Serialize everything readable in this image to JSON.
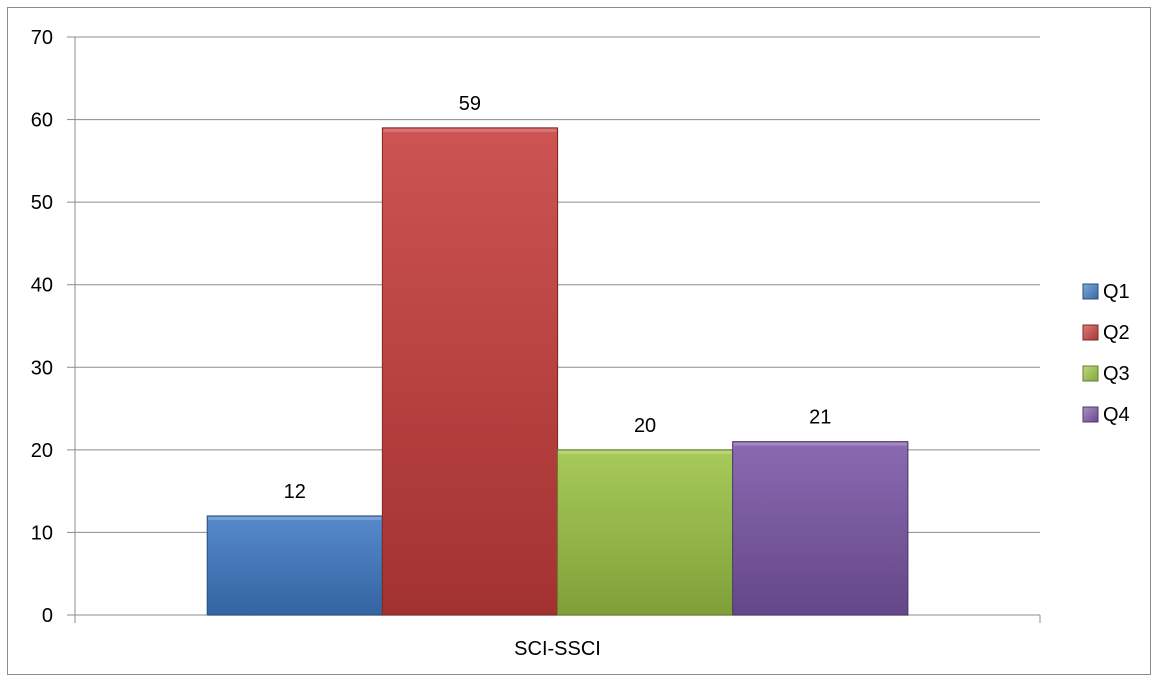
{
  "chart_data": {
    "type": "bar",
    "categories": [
      "SCI-SSCI"
    ],
    "series": [
      {
        "name": "Q1",
        "values": [
          12
        ],
        "color": "#3f7ac4"
      },
      {
        "name": "Q2",
        "values": [
          59
        ],
        "color": "#c63d3a"
      },
      {
        "name": "Q3",
        "values": [
          20
        ],
        "color": "#9bc344"
      },
      {
        "name": "Q4",
        "values": [
          21
        ],
        "color": "#7a56a6"
      }
    ],
    "title": "",
    "xlabel": "",
    "ylabel": "",
    "ylim": [
      0,
      70
    ],
    "yticks": [
      0,
      10,
      20,
      30,
      40,
      50,
      60,
      70
    ],
    "grid": true,
    "legend": "right",
    "data_labels": true
  }
}
